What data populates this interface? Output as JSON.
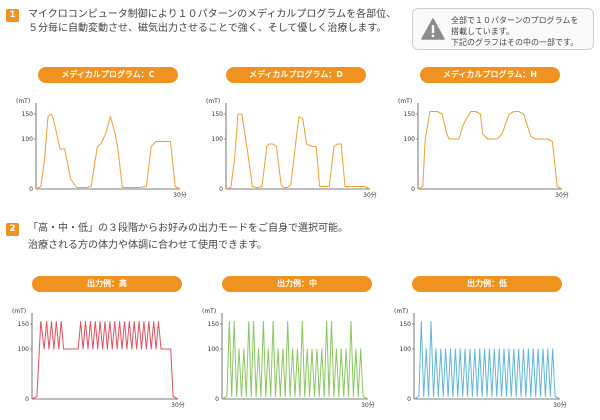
{
  "section1": {
    "number": "1",
    "lines": [
      "マイクロコンピュータ制御により１０パターンのメディカルプログラムを各部位、",
      "５分毎に自動変動させ、磁気出力させることで強く、そして優しく治療します。"
    ]
  },
  "notice": {
    "lines": [
      "全部で１０パターンのプログラムを",
      "搭載しています。",
      "下記のグラフはその中の一部です。"
    ],
    "icon": "warning-icon"
  },
  "section2": {
    "number": "2",
    "lines": [
      "「高・中・低」の３段階からお好みの出力モードをご自身で選択可能。",
      "治療される方の体力や体調に合わせて使用できます。"
    ]
  },
  "chart_data": [
    {
      "type": "line",
      "title": "メディカルプログラム：C",
      "ylabel": "(mT)",
      "y_ticks": [
        "150",
        "100",
        "0"
      ],
      "x_end_label": "30分",
      "ylim": [
        0,
        160
      ],
      "xlim": [
        0,
        30
      ],
      "color": "#f0a030",
      "x": [
        0,
        1,
        1.8,
        2.5,
        3.2,
        3.6,
        4.2,
        5,
        6,
        7.2,
        8.5,
        9.5,
        10.5,
        11.5,
        12.2,
        12.8,
        13.5,
        14.5,
        15.5,
        16.5,
        17,
        18,
        19.5,
        20,
        21.5,
        23,
        24,
        25,
        26,
        26.8,
        28,
        29,
        30
      ],
      "y": [
        0,
        5,
        60,
        145,
        150,
        140,
        115,
        80,
        80,
        20,
        3,
        3,
        3,
        5,
        50,
        85,
        90,
        110,
        145,
        110,
        85,
        3,
        3,
        3,
        3,
        5,
        85,
        95,
        95,
        95,
        95,
        5,
        0
      ]
    },
    {
      "type": "line",
      "title": "メディカルプログラム：D",
      "ylabel": "(mT)",
      "y_ticks": [
        "150",
        "100",
        "0"
      ],
      "x_end_label": "30分",
      "ylim": [
        0,
        160
      ],
      "xlim": [
        0,
        30
      ],
      "color": "#f0a030",
      "x": [
        0,
        1,
        1.8,
        2.5,
        3.3,
        4.5,
        5.5,
        6.5,
        7.5,
        8.5,
        9,
        9.8,
        10.5,
        11.5,
        12,
        12.8,
        13.5,
        14.5,
        15.2,
        16,
        16.8,
        18,
        18.8,
        19.5,
        20.8,
        21.5,
        22.5,
        23.2,
        24,
        24.8,
        26,
        27,
        28,
        28.8,
        30
      ],
      "y": [
        0,
        3,
        60,
        150,
        150,
        75,
        5,
        3,
        5,
        85,
        90,
        90,
        85,
        8,
        3,
        3,
        8,
        90,
        145,
        140,
        90,
        85,
        85,
        5,
        5,
        5,
        85,
        90,
        90,
        5,
        5,
        5,
        5,
        5,
        0
      ]
    },
    {
      "type": "line",
      "title": "メディカルプログラム：H",
      "ylabel": "(mT)",
      "y_ticks": [
        "150",
        "100",
        "0"
      ],
      "x_end_label": "30分",
      "ylim": [
        0,
        160
      ],
      "xlim": [
        0,
        30
      ],
      "color": "#f0a030",
      "x": [
        0,
        1,
        1.5,
        2.5,
        4,
        5,
        6,
        6.5,
        7.5,
        8.5,
        9.5,
        11,
        12,
        13,
        13.5,
        14.5,
        15.5,
        16.5,
        17.5,
        19,
        20,
        21,
        22,
        23.5,
        24.5,
        25,
        26,
        27,
        28,
        29,
        30
      ],
      "y": [
        0,
        5,
        100,
        155,
        155,
        150,
        110,
        100,
        100,
        100,
        130,
        155,
        155,
        150,
        110,
        100,
        100,
        100,
        110,
        150,
        155,
        155,
        150,
        105,
        100,
        100,
        100,
        100,
        95,
        5,
        0
      ]
    },
    {
      "type": "line",
      "title": "出力例：高",
      "ylabel": "(mT)",
      "y_ticks": [
        "150",
        "100",
        "0"
      ],
      "x_end_label": "30分",
      "ylim": [
        0,
        160
      ],
      "xlim": [
        0,
        30
      ],
      "color": "#e05060",
      "x": [
        0,
        1,
        1.8,
        2.5,
        3,
        3.5,
        4,
        4.5,
        5,
        5.5,
        6,
        6.5,
        7,
        7.5,
        8,
        8.5,
        9,
        9.5,
        10,
        10.5,
        11,
        11.5,
        12,
        12.5,
        13,
        13.5,
        14,
        14.5,
        15,
        15.5,
        16,
        16.5,
        17,
        17.5,
        18,
        18.5,
        19,
        19.5,
        20,
        20.5,
        21,
        21.5,
        22,
        22.5,
        23,
        23.5,
        24,
        24.5,
        25,
        25.5,
        26,
        26.5,
        27,
        27.5,
        28,
        28.5,
        29,
        30
      ],
      "y": [
        0,
        5,
        155,
        100,
        155,
        100,
        155,
        100,
        155,
        100,
        155,
        100,
        100,
        100,
        100,
        100,
        100,
        100,
        155,
        100,
        155,
        100,
        155,
        100,
        155,
        100,
        155,
        100,
        155,
        100,
        155,
        100,
        155,
        100,
        155,
        100,
        155,
        100,
        155,
        100,
        155,
        100,
        155,
        100,
        155,
        100,
        155,
        100,
        155,
        100,
        155,
        100,
        100,
        100,
        100,
        100,
        5,
        0
      ]
    },
    {
      "type": "line",
      "title": "出力例：中",
      "ylabel": "(mT)",
      "y_ticks": [
        "150",
        "100",
        "0"
      ],
      "x_end_label": "30分",
      "ylim": [
        0,
        160
      ],
      "xlim": [
        0,
        30
      ],
      "color": "#8ac860",
      "x": [
        0,
        1,
        1.5,
        2,
        2.5,
        3,
        3.5,
        4,
        4.5,
        5,
        5.5,
        6,
        6.5,
        7,
        7.5,
        8,
        8.5,
        9,
        9.5,
        10,
        10.5,
        11,
        11.5,
        12,
        12.5,
        13,
        13.5,
        14,
        14.5,
        15,
        15.5,
        16,
        16.5,
        17,
        17.5,
        18,
        18.5,
        19,
        19.5,
        20,
        20.5,
        21,
        21.5,
        22,
        22.5,
        23,
        23.5,
        24,
        24.5,
        25,
        25.5,
        26,
        26.5,
        27,
        27.5,
        28,
        28.5,
        29,
        30
      ],
      "y": [
        0,
        5,
        155,
        5,
        155,
        5,
        100,
        5,
        100,
        5,
        155,
        5,
        155,
        5,
        100,
        5,
        155,
        5,
        100,
        5,
        155,
        5,
        100,
        5,
        100,
        5,
        155,
        5,
        100,
        5,
        100,
        5,
        155,
        5,
        100,
        5,
        100,
        5,
        100,
        5,
        100,
        5,
        155,
        5,
        155,
        5,
        100,
        5,
        100,
        5,
        100,
        5,
        155,
        5,
        100,
        5,
        100,
        5,
        0
      ]
    },
    {
      "type": "line",
      "title": "出力例：低",
      "ylabel": "(mT)",
      "y_ticks": [
        "150",
        "100",
        "0"
      ],
      "x_end_label": "30分",
      "ylim": [
        0,
        160
      ],
      "xlim": [
        0,
        30
      ],
      "color": "#60b8d8",
      "x": [
        0,
        1,
        1.5,
        2,
        2.5,
        3,
        3.5,
        4,
        4.5,
        5,
        5.5,
        6,
        6.5,
        7,
        7.5,
        8,
        8.5,
        9,
        9.5,
        10,
        10.5,
        11,
        11.5,
        12,
        12.5,
        13,
        13.5,
        14,
        14.5,
        15,
        15.5,
        16,
        16.5,
        17,
        17.5,
        18,
        18.5,
        19,
        19.5,
        20,
        20.5,
        21,
        21.5,
        22,
        22.5,
        23,
        23.5,
        24,
        24.5,
        25,
        25.5,
        26,
        26.5,
        27,
        27.5,
        28,
        28.5,
        29,
        30
      ],
      "y": [
        0,
        5,
        155,
        5,
        100,
        5,
        155,
        5,
        100,
        5,
        100,
        5,
        100,
        5,
        100,
        5,
        100,
        5,
        100,
        5,
        100,
        5,
        100,
        5,
        100,
        5,
        100,
        5,
        100,
        5,
        100,
        5,
        100,
        5,
        100,
        5,
        100,
        5,
        100,
        5,
        100,
        5,
        100,
        5,
        100,
        5,
        100,
        5,
        100,
        5,
        100,
        5,
        100,
        5,
        100,
        5,
        100,
        5,
        0
      ]
    }
  ]
}
